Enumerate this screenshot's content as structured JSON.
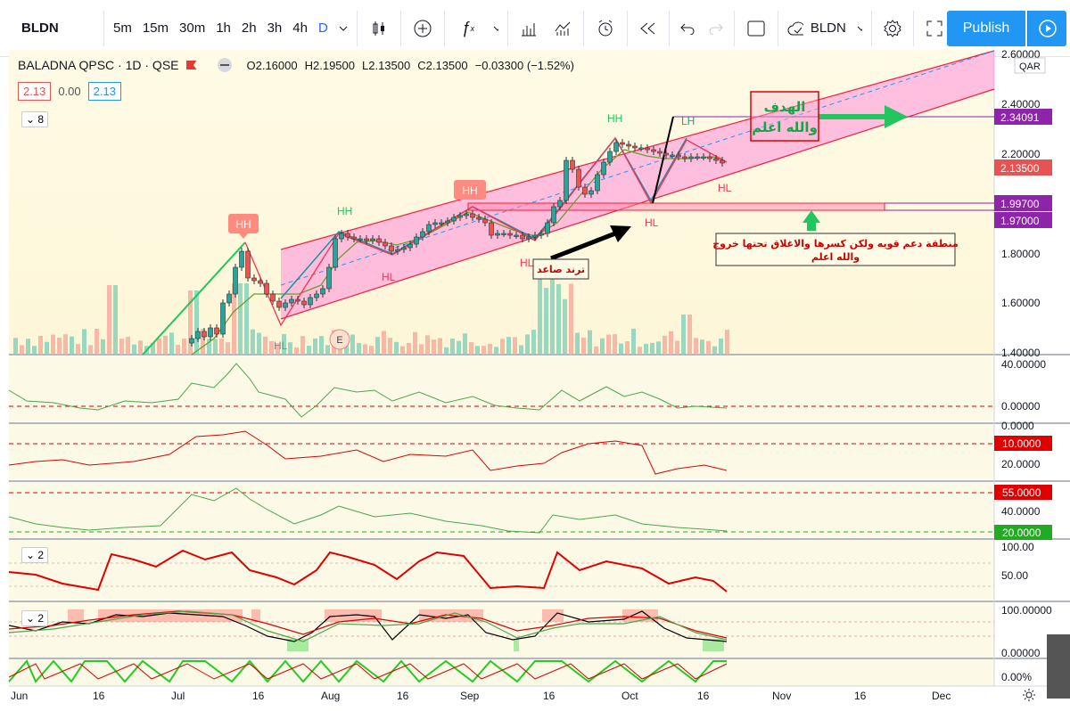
{
  "toolbar": {
    "symbol": "BLDN",
    "intervals": [
      "5m",
      "15m",
      "30m",
      "1h",
      "2h",
      "3h",
      "4h",
      "D"
    ],
    "compare_symbol": "BLDN",
    "publish_label": "Publish"
  },
  "legend": {
    "title": "BALADNA QPSC · 1D · QSE",
    "open": "O2.16000",
    "high": "H2.19500",
    "low": "L2.13500",
    "close": "C2.13500",
    "change": "−0.03300 (−1.52%)",
    "val1": "2.13",
    "val2": "0.00",
    "val3": "2.13",
    "indicator_count": "8"
  },
  "currency": "QAR",
  "price_axis": [
    "2.60000",
    "2.40000",
    "2.20000",
    "1.80000",
    "1.60000",
    "1.40000"
  ],
  "price_labels": {
    "target": "2.34091",
    "last": "2.13500",
    "sup1": "1.99700",
    "sup2": "1.97000"
  },
  "panes": {
    "p1": [
      "40.00000",
      "0.00000"
    ],
    "p2": [
      "0.0000",
      "10.0000",
      "20.0000"
    ],
    "p3": [
      "55.0000",
      "40.0000",
      "20.0000"
    ],
    "p4": [
      "100.00",
      "50.00"
    ],
    "p4_count": "2",
    "p5": [
      "100.00000",
      "0.00000",
      "0.00%"
    ],
    "p5_count": "2"
  },
  "time_axis": [
    "Jun",
    "16",
    "Jul",
    "16",
    "Aug",
    "16",
    "Sep",
    "16",
    "Oct",
    "16",
    "Nov",
    "16",
    "Dec"
  ],
  "annotations": {
    "target_1": "الهدف",
    "target_2": "والله اعلم",
    "support": "منطقة دعم قويه ولكن كسرها والاغلاق تحتها خروج",
    "support_2": "والله اعلم",
    "trend": "ترند صاعد",
    "hh": "HH",
    "hl": "HL",
    "lh": "LH",
    "e_marker": "E"
  },
  "colors": {
    "up": "#26a69a",
    "down": "#ef5350",
    "channel": "#ff00c8",
    "accent": "#2196f3",
    "support": "#8e24aa"
  }
}
